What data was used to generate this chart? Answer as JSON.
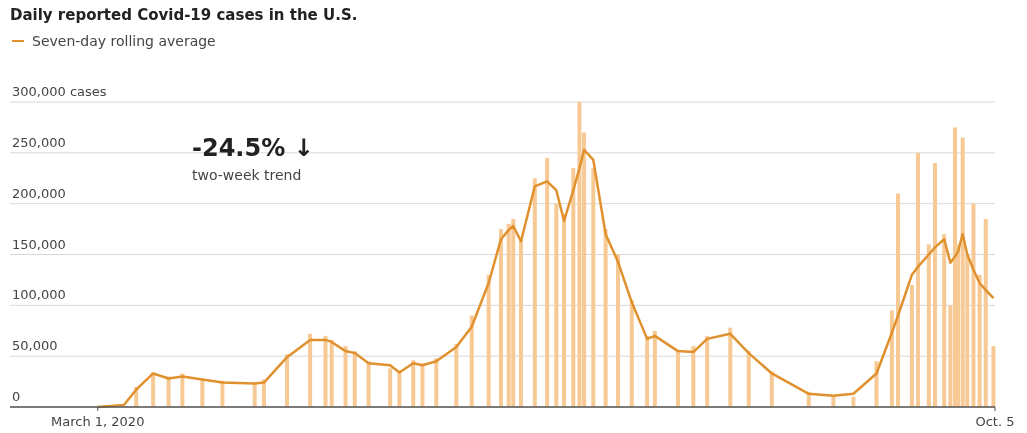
{
  "chart_data": {
    "type": "bar",
    "title": "Daily reported Covid-19 cases in the U.S.",
    "annotations": [
      "-24.5% ↓",
      "two-week trend"
    ],
    "xlim": [
      "2020-01-04",
      "2021-10-05"
    ],
    "xticks": [
      {
        "value": "2020-03-01",
        "label": "March 1, 2020"
      },
      {
        "value": "2021-10-05",
        "label": "Oct. 5"
      }
    ],
    "ylim": [
      0,
      300000
    ],
    "yticks": [
      {
        "value": 0,
        "label": "0"
      },
      {
        "value": 50000,
        "label": "50,000"
      },
      {
        "value": 100000,
        "label": "100,000"
      },
      {
        "value": 150000,
        "label": "150,000"
      },
      {
        "value": 200000,
        "label": "200,000"
      },
      {
        "value": 250000,
        "label": "250,000"
      },
      {
        "value": 300000,
        "label": "300,000 cases"
      }
    ],
    "grid": "y",
    "legend": "top left",
    "x": [
      "2020-03-01",
      "2020-03-18",
      "2020-03-26",
      "2020-04-06",
      "2020-04-16",
      "2020-04-25",
      "2020-05-08",
      "2020-05-21",
      "2020-06-11",
      "2020-06-17",
      "2020-07-02",
      "2020-07-17",
      "2020-07-27",
      "2020-07-31",
      "2020-08-09",
      "2020-08-15",
      "2020-08-24",
      "2020-09-07",
      "2020-09-13",
      "2020-09-22",
      "2020-09-28",
      "2020-10-07",
      "2020-10-20",
      "2020-10-30",
      "2020-11-10",
      "2020-11-18",
      "2020-11-23",
      "2020-11-26",
      "2020-12-01",
      "2020-12-10",
      "2020-12-18",
      "2020-12-24",
      "2020-12-29",
      "2021-01-04",
      "2021-01-08",
      "2021-01-11",
      "2021-01-17",
      "2021-01-25",
      "2021-02-02",
      "2021-02-11",
      "2021-02-21",
      "2021-02-26",
      "2021-03-13",
      "2021-03-23",
      "2021-04-01",
      "2021-04-16",
      "2021-04-28",
      "2021-05-13",
      "2021-06-06",
      "2021-06-22",
      "2021-07-05",
      "2021-07-20",
      "2021-07-30",
      "2021-08-03",
      "2021-08-12",
      "2021-08-16",
      "2021-08-23",
      "2021-08-27",
      "2021-09-02",
      "2021-09-06",
      "2021-09-09",
      "2021-09-11",
      "2021-09-14",
      "2021-09-17",
      "2021-09-21",
      "2021-09-25",
      "2021-09-29",
      "2021-10-04"
    ],
    "series": [
      {
        "color": "#f7c995",
        "values": [
          0,
          null,
          20000,
          34000,
          30000,
          33000,
          28000,
          26000,
          24000,
          27000,
          52000,
          72000,
          70000,
          66000,
          60000,
          55000,
          45000,
          38000,
          36000,
          46000,
          43000,
          48000,
          62000,
          90000,
          130000,
          175000,
          180000,
          185000,
          165000,
          225000,
          245000,
          200000,
          190000,
          235000,
          300000,
          270000,
          235000,
          175000,
          150000,
          105000,
          70000,
          75000,
          55000,
          60000,
          70000,
          78000,
          55000,
          35000,
          15000,
          12000,
          10000,
          45000,
          95000,
          210000,
          120000,
          250000,
          160000,
          240000,
          170000,
          100000,
          275000,
          160000,
          265000,
          150000,
          200000,
          130000,
          185000,
          60000
        ]
      },
      {
        "type": "line",
        "name": "Seven-day rolling average",
        "color": "#e0912e",
        "values": [
          0,
          2000,
          17000,
          33000,
          28000,
          30000,
          27000,
          24000,
          23000,
          24000,
          49000,
          66000,
          66000,
          64000,
          55000,
          53000,
          43000,
          41000,
          34000,
          43000,
          41000,
          45000,
          59000,
          79000,
          122000,
          165000,
          174000,
          178000,
          163000,
          217000,
          222000,
          213000,
          183000,
          213000,
          235000,
          253000,
          243000,
          170000,
          143000,
          103000,
          67000,
          70000,
          55000,
          54000,
          67000,
          72000,
          53000,
          33000,
          13000,
          11000,
          13000,
          33000,
          73000,
          90000,
          130000,
          138000,
          150000,
          157000,
          165000,
          142000,
          148000,
          153000,
          170000,
          150000,
          135000,
          122000,
          115000,
          107000
        ]
      }
    ]
  }
}
